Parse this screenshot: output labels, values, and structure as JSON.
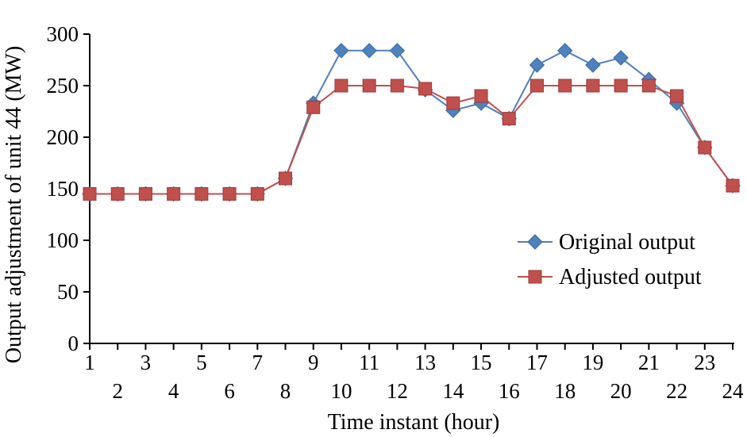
{
  "chart_data": {
    "type": "line",
    "title": "",
    "xlabel": "Time instant (hour)",
    "ylabel": "Output adjustment of unit 44 (MW)",
    "x": [
      1,
      2,
      3,
      4,
      5,
      6,
      7,
      8,
      9,
      10,
      11,
      12,
      13,
      14,
      15,
      16,
      17,
      18,
      19,
      20,
      21,
      22,
      23,
      24
    ],
    "ylim": [
      0,
      300
    ],
    "yticks": [
      0,
      50,
      100,
      150,
      200,
      250,
      300
    ],
    "grid": false,
    "legend_position": "center-right",
    "series": [
      {
        "name": "Original output",
        "marker": "diamond",
        "color": "#4F81BD",
        "values": [
          145,
          145,
          145,
          145,
          145,
          145,
          145,
          160,
          233,
          284,
          284,
          284,
          246,
          226,
          233,
          218,
          270,
          284,
          270,
          277,
          256,
          233,
          190,
          153
        ]
      },
      {
        "name": "Adjusted output",
        "marker": "square",
        "color": "#C0504D",
        "values": [
          145,
          145,
          145,
          145,
          145,
          145,
          145,
          160,
          229,
          250,
          250,
          250,
          247,
          233,
          240,
          218,
          250,
          250,
          250,
          250,
          250,
          240,
          190,
          153
        ]
      }
    ]
  }
}
